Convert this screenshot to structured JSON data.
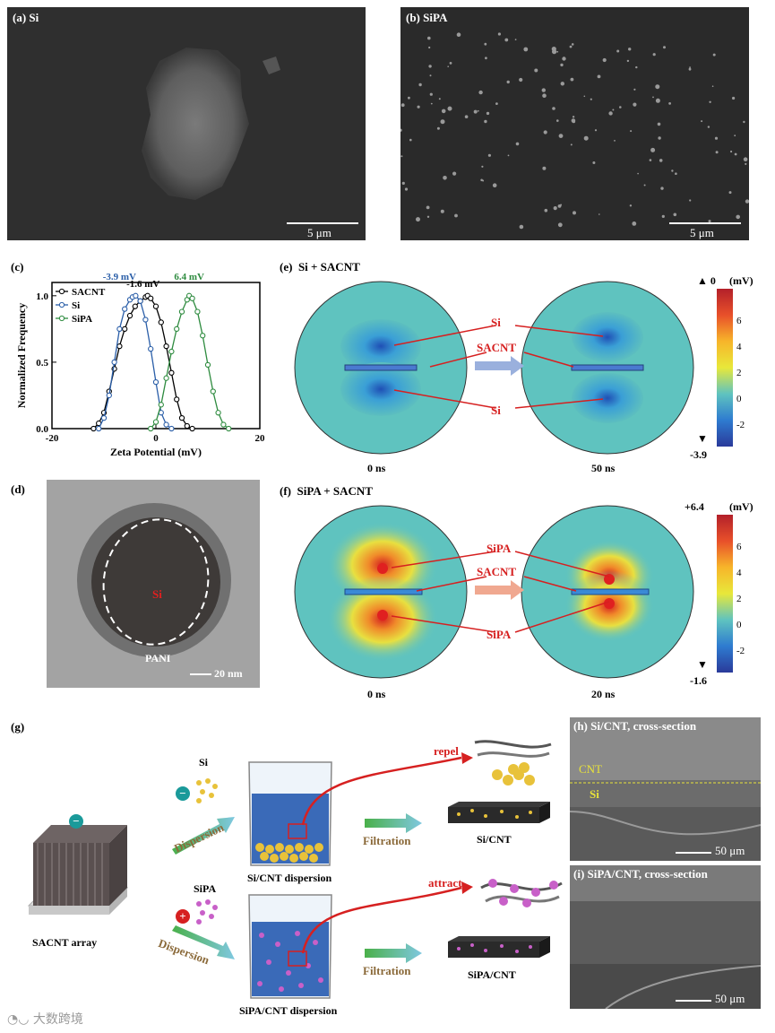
{
  "panels": {
    "a": {
      "label": "(a) Si",
      "scale": "5 μm"
    },
    "b": {
      "label": "(b) SiPA",
      "scale": "5 μm"
    },
    "c": {
      "label": "(c)"
    },
    "d": {
      "label": "(d)",
      "core": "Si",
      "shell": "PANI",
      "scale": "20 nm"
    },
    "e": {
      "label": "(e)",
      "title": "Si + SACNT",
      "tags": {
        "si": "Si",
        "sacnt": "SACNT"
      },
      "time_left": "0 ns",
      "time_right": "50 ns",
      "colorbar": {
        "top": "0",
        "unit": "(mV)",
        "ticks": [
          "6",
          "4",
          "2",
          "0",
          "-2"
        ],
        "bottom": "-3.9"
      }
    },
    "f": {
      "label": "(f)",
      "title": "SiPA + SACNT",
      "tags": {
        "sipa": "SiPA",
        "sacnt": "SACNT"
      },
      "time_left": "0 ns",
      "time_right": "20 ns",
      "colorbar": {
        "top": "+6.4",
        "unit": "(mV)",
        "ticks": [
          "6",
          "4",
          "2",
          "0",
          "-2"
        ],
        "bottom": "-1.6"
      }
    },
    "g": {
      "label": "(g)",
      "si": "Si",
      "sipa": "SiPA",
      "dispersion": "Dispersion",
      "array": "SACNT array",
      "si_disp": "Si/CNT dispersion",
      "sipa_disp": "SiPA/CNT dispersion",
      "filtration": "Filtration",
      "repel": "repel",
      "attract": "attract",
      "si_cnt": "Si/CNT",
      "sipa_cnt": "SiPA/CNT",
      "minus": "−",
      "plus": "+"
    },
    "h": {
      "label": "(h) Si/CNT, cross-section",
      "cnt": "CNT",
      "si": "Si",
      "scale": "50 μm"
    },
    "i": {
      "label": "(i) SiPA/CNT, cross-section",
      "scale": "50 μm"
    }
  },
  "watermark": "大数跨境",
  "chart_data": {
    "type": "line",
    "xlabel": "Zeta Potential (mV)",
    "ylabel": "Normalized Frequency",
    "xlim": [
      -20,
      20
    ],
    "ylim": [
      0,
      1.1
    ],
    "xticks": [
      -20,
      0,
      20
    ],
    "yticks": [
      0.0,
      0.5,
      1.0
    ],
    "legend": "top-left",
    "series": [
      {
        "name": "SACNT",
        "color": "#000000",
        "peak_label": "-1.6 mV",
        "x": [
          -12,
          -11,
          -10,
          -9,
          -8,
          -7,
          -6,
          -5,
          -4,
          -3,
          -2,
          -1.6,
          -1,
          0,
          1,
          2,
          3,
          4,
          5,
          6,
          7
        ],
        "y": [
          0,
          0.04,
          0.12,
          0.28,
          0.45,
          0.62,
          0.75,
          0.85,
          0.92,
          0.96,
          0.99,
          1.0,
          0.98,
          0.92,
          0.8,
          0.62,
          0.42,
          0.22,
          0.08,
          0.02,
          0
        ]
      },
      {
        "name": "Si",
        "color": "#2a5ea8",
        "peak_label": "-3.9 mV",
        "x": [
          -11,
          -10,
          -9,
          -8,
          -7,
          -6,
          -5,
          -4.5,
          -3.9,
          -3,
          -2,
          -1,
          0,
          1,
          2,
          3
        ],
        "y": [
          0,
          0.08,
          0.25,
          0.5,
          0.75,
          0.9,
          0.97,
          0.99,
          1.0,
          0.96,
          0.82,
          0.6,
          0.35,
          0.12,
          0.03,
          0
        ]
      },
      {
        "name": "SiPA",
        "color": "#2e8b3f",
        "peak_label": "6.4 mV",
        "x": [
          -1,
          0,
          1,
          2,
          3,
          4,
          5,
          6,
          6.4,
          7,
          8,
          9,
          10,
          11,
          12,
          13,
          14
        ],
        "y": [
          0,
          0.05,
          0.18,
          0.38,
          0.58,
          0.75,
          0.88,
          0.97,
          1.0,
          0.98,
          0.88,
          0.7,
          0.48,
          0.28,
          0.12,
          0.03,
          0
        ]
      }
    ]
  }
}
